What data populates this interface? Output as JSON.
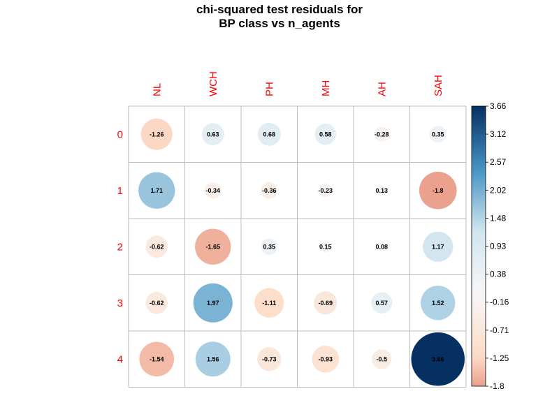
{
  "title_lines": [
    "chi-squared test residuals for",
    "BP class vs n_agents"
  ],
  "chart_data": {
    "type": "heatmap",
    "style": "corrplot-circle",
    "title": "chi-squared test residuals for BP class vs n_agents",
    "columns": [
      "NL",
      "WCH",
      "PH",
      "MH",
      "AH",
      "SAH"
    ],
    "rows": [
      "0",
      "1",
      "2",
      "3",
      "4"
    ],
    "values": [
      [
        -1.26,
        0.63,
        0.68,
        0.58,
        -0.28,
        0.35
      ],
      [
        1.71,
        -0.34,
        -0.36,
        -0.23,
        0.13,
        -1.8
      ],
      [
        -0.62,
        -1.65,
        0.35,
        0.15,
        0.08,
        1.17
      ],
      [
        -0.62,
        1.97,
        -1.11,
        -0.69,
        0.57,
        1.52
      ],
      [
        -1.54,
        1.56,
        -0.73,
        -0.93,
        -0.5,
        3.66
      ]
    ],
    "value_labels": [
      [
        "-1.26",
        "0.63",
        "0.68",
        "0.58",
        "-0.28",
        "0.35"
      ],
      [
        "1.71",
        "-0.34",
        "-0.36",
        "-0.23",
        "0.13",
        "-1.8"
      ],
      [
        "-0.62",
        "-1.65",
        "0.35",
        "0.15",
        "0.08",
        "1.17"
      ],
      [
        "-0.62",
        "1.97",
        "-1.11",
        "-0.69",
        "0.57",
        "1.52"
      ],
      [
        "-1.54",
        "1.56",
        "-0.73",
        "-0.93",
        "-0.5",
        "3.66"
      ]
    ],
    "colorbar": {
      "range": [
        -1.8,
        3.66
      ],
      "ticks": [
        "3.66",
        "3.12",
        "2.57",
        "2.02",
        "1.48",
        "0.93",
        "0.38",
        "-0.16",
        "-0.71",
        "-1.25",
        "-1.8"
      ]
    },
    "label_color": "#ff0000",
    "colors": {
      "negative_strong": "#67001f",
      "negative": "#d6604d",
      "negative_light": "#fddbc7",
      "neutral": "#f7f7f7",
      "positive_light": "#d1e5f0",
      "positive": "#4393c3",
      "positive_strong": "#053061",
      "grid": "#bebebe"
    }
  }
}
